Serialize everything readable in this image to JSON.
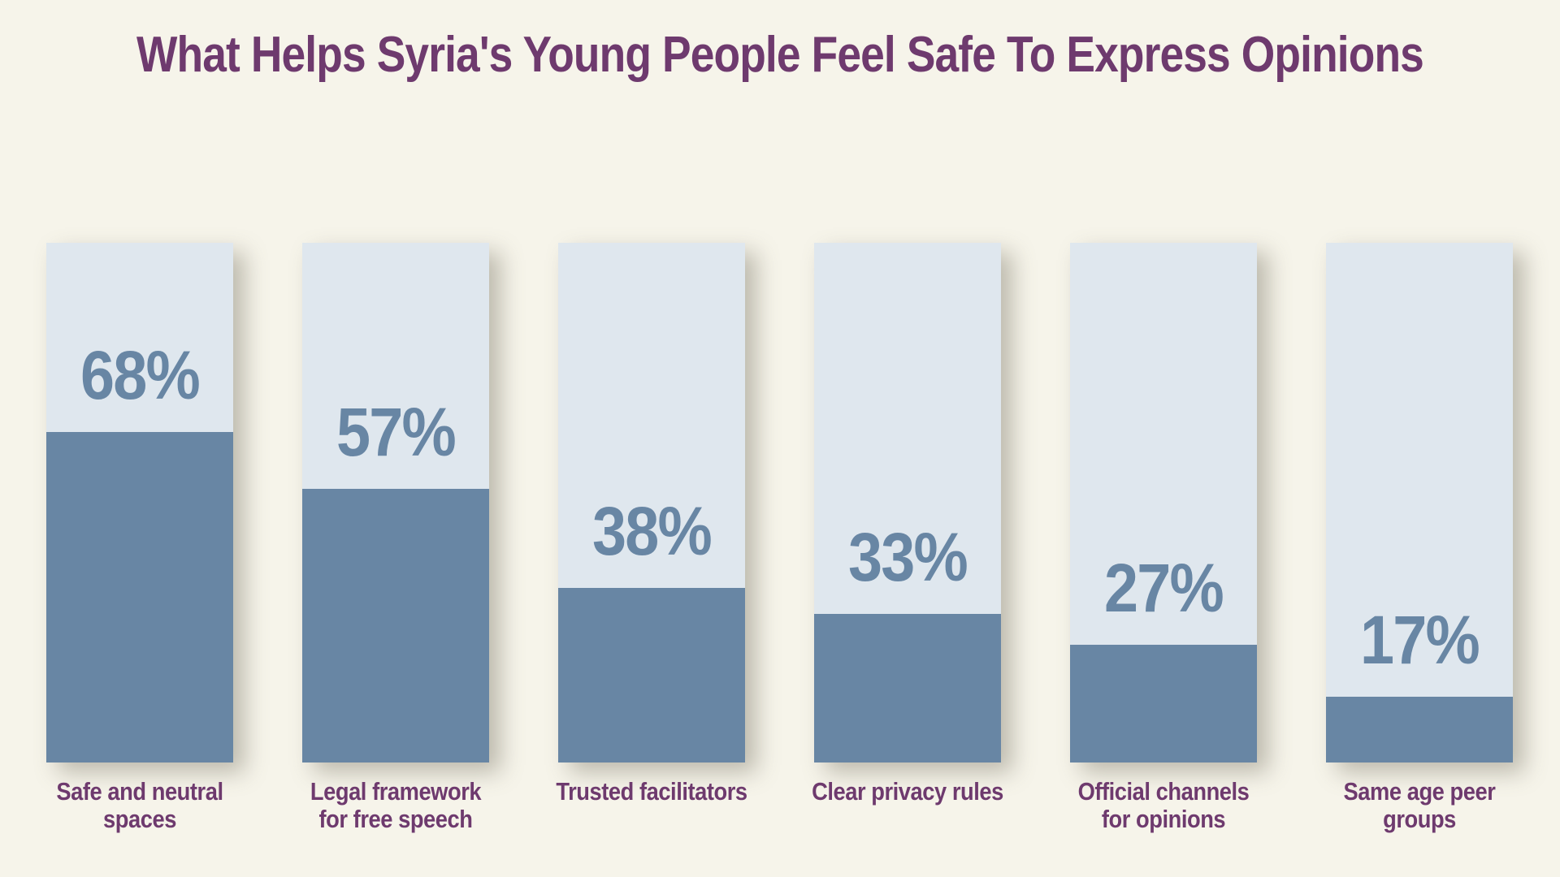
{
  "chart_data": {
    "type": "bar",
    "title": "What Helps Syria's Young People Feel Safe To Express Opinions",
    "categories": [
      [
        "Safe and neutral",
        "spaces"
      ],
      [
        "Legal framework",
        "for free speech"
      ],
      [
        "Trusted facilitators"
      ],
      [
        "Clear privacy rules"
      ],
      [
        "Official channels",
        "for opinions"
      ],
      [
        "Same age peer",
        "groups"
      ]
    ],
    "values": [
      68,
      57,
      38,
      33,
      27,
      17
    ],
    "value_labels": [
      "68%",
      "57%",
      "38%",
      "33%",
      "27%",
      "17%"
    ],
    "unit": "%",
    "xlabel": "",
    "ylabel": "",
    "ylim": [
      0,
      100
    ],
    "grid": false,
    "legend": "none",
    "colors": {
      "background": "#F6F4EA",
      "track": "#DFE7EE",
      "fill": "#6886A4",
      "text": "#6E3A6E"
    }
  }
}
